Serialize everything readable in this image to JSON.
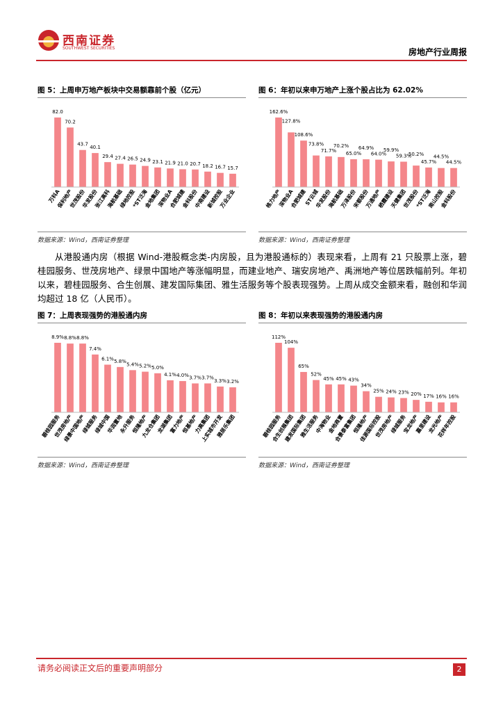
{
  "header": {
    "logo_cn": "西南证券",
    "logo_en": "SOUTHWEST SECURITIES",
    "report_type": "房地产行业周报"
  },
  "chart_data": [
    {
      "type": "bar",
      "title": "图 5：上周申万地产板块中交易额靠前个股（亿元）",
      "color": "#f4868a",
      "categories": [
        "万科A",
        "保利地产",
        "世茂股份",
        "华发股份",
        "张江高科",
        "海航基础",
        "绿地控股",
        "*ST泛海",
        "金地集团",
        "深物业A",
        "合肥城建",
        "金科股份",
        "中南建设",
        "新城控股",
        "万业企业"
      ],
      "values": [
        82.0,
        70.2,
        43.7,
        40.1,
        29.4,
        27.4,
        26.5,
        24.9,
        23.1,
        21.9,
        21.0,
        20.7,
        18.2,
        16.7,
        15.7
      ],
      "value_labels": [
        "82.0",
        "70.2",
        "43.7",
        "40.1",
        "29.4",
        "27.4",
        "26.5",
        "24.9",
        "23.1",
        "21.9",
        "21.0",
        "20.7",
        "18.2",
        "16.7",
        "15.7"
      ],
      "source": "数据来源：Wind，西南证券整理"
    },
    {
      "type": "bar",
      "title": "图 6：年初以来申万地产上涨个股占比为 62.02%",
      "color": "#f4868a",
      "categories": [
        "格力地产",
        "深物业A",
        "合肥城建",
        "ST云城",
        "华发股份",
        "海航基础",
        "万泽股份",
        "宋都股份",
        "万通地产",
        "栖霞建设",
        "天健集团",
        "世茂股份",
        "*ST泛海",
        "南山控股",
        "金科股份"
      ],
      "values": [
        162.6,
        127.8,
        108.6,
        73.8,
        71.7,
        70.2,
        65.0,
        64.9,
        64.0,
        59.9,
        59.3,
        50.2,
        45.7,
        44.5,
        44.5
      ],
      "value_labels": [
        "162.6%",
        "127.8%",
        "108.6%",
        "73.8%",
        "71.7%",
        "70.2%",
        "65.0%",
        "64.9%",
        "64.0%",
        "59.9%",
        "59.3%",
        "50.2%",
        "45.7%",
        "44.5%",
        "44.5%"
      ],
      "source": "数据来源：Wind，西南证券整理"
    },
    {
      "type": "bar",
      "title": "图 7：上周表现强势的港股通内房",
      "color": "#f4868a",
      "categories": [
        "碧桂园服务",
        "世茂房地产",
        "绿景中国地产",
        "绿城服务",
        "绿城中国",
        "华润置地",
        "永升服务",
        "恒隆地产",
        "九龙仓集团",
        "龙湖集团",
        "富力地产",
        "恒基地产",
        "力高集团",
        "上实城市开发",
        "雅居乐集团"
      ],
      "values": [
        8.9,
        8.8,
        8.8,
        7.4,
        6.1,
        5.8,
        5.4,
        5.2,
        5.0,
        4.1,
        4.0,
        3.7,
        3.7,
        3.3,
        3.2
      ],
      "value_labels": [
        "8.9%",
        "8.8%",
        "8.8%",
        "7.4%",
        "6.1%",
        "5.8%",
        "5.4%",
        "5.2%",
        "5.0%",
        "4.1%",
        "4.0%",
        "3.7%",
        "3.7%",
        "3.3%",
        "3.2%"
      ],
      "source": "数据来源：Wind，西南证券整理"
    },
    {
      "type": "bar",
      "title": "图 8：年初以来表现强势的港股通内房",
      "color": "#f4868a",
      "categories": [
        "碧桂园服务",
        "合生创展集团",
        "建发国际集团",
        "雅生活服务",
        "中海物业",
        "金地商置",
        "合景泰富集团",
        "恒隆地产",
        "佳源国际控股",
        "世茂房地产",
        "绿城服务",
        "宝龙地产",
        "嘉里建设",
        "龙光地产",
        "花样年控股"
      ],
      "values": [
        112,
        104,
        65,
        52,
        45,
        45,
        43,
        34,
        25,
        24,
        23,
        20,
        17,
        16,
        16
      ],
      "value_labels": [
        "112%",
        "104%",
        "65%",
        "52%",
        "45%",
        "45%",
        "43%",
        "34%",
        "25%",
        "24%",
        "23%",
        "20%",
        "17%",
        "16%",
        "16%"
      ],
      "source": "数据来源：Wind，西南证券整理"
    }
  ],
  "paragraph": "从港股通内房（根据 Wind-港股概念类-内房股，且为港股通标的）表现来看，上周有 21 只股票上涨，碧桂园服务、世茂房地产、绿景中国地产等涨幅明显，而建业地产、瑞安房地产、禹洲地产等位居跌幅前列。年初以来，碧桂园服务、合生创展、建发国际集团、雅生活服务等个股表现强势。上周从成交金额来看，融创和华润均超过 18 亿（人民币）。",
  "footer": {
    "notice": "请务必阅读正文后的重要声明部分",
    "page": "2"
  }
}
